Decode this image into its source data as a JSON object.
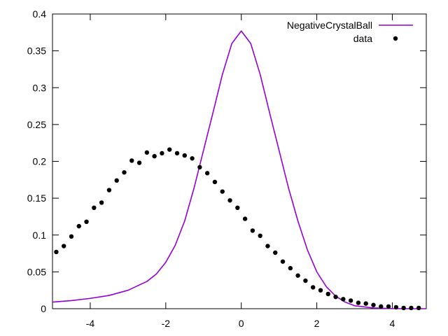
{
  "chart_data": {
    "type": "line",
    "title": "",
    "xlabel": "",
    "ylabel": "",
    "xlim": [
      -5,
      4.9
    ],
    "ylim": [
      0,
      0.4
    ],
    "xticks": [
      -4,
      -2,
      0,
      2,
      4
    ],
    "xtick_labels": [
      "-4",
      "-2",
      "0",
      "2",
      "4"
    ],
    "yticks": [
      0,
      0.05,
      0.1,
      0.15,
      0.2,
      0.25,
      0.3,
      0.35,
      0.4
    ],
    "ytick_labels": [
      "0",
      "0.05",
      "0.1",
      "0.15",
      "0.2",
      "0.25",
      "0.3",
      "0.35",
      "0.4"
    ],
    "grid": false,
    "legend_position": "top-right",
    "series": [
      {
        "name": "NegativeCrystalBall",
        "style": "line",
        "color": "#9400d3",
        "x": [
          -5.0,
          -4.5,
          -4.0,
          -3.5,
          -3.0,
          -2.5,
          -2.25,
          -2.0,
          -1.75,
          -1.5,
          -1.25,
          -1.0,
          -0.75,
          -0.5,
          -0.25,
          0.0,
          0.25,
          0.5,
          0.75,
          1.0,
          1.25,
          1.5,
          1.75,
          2.0,
          2.25,
          2.5,
          2.75,
          3.0,
          3.5,
          4.0,
          4.5,
          4.9
        ],
        "y": [
          0.009,
          0.011,
          0.014,
          0.018,
          0.025,
          0.037,
          0.047,
          0.063,
          0.086,
          0.119,
          0.164,
          0.215,
          0.266,
          0.318,
          0.36,
          0.377,
          0.36,
          0.318,
          0.266,
          0.215,
          0.164,
          0.119,
          0.08,
          0.05,
          0.03,
          0.017,
          0.009,
          0.004,
          0.001,
          0.0002,
          0.0,
          0.0
        ]
      },
      {
        "name": "data",
        "style": "points",
        "color": "#000000",
        "x": [
          -4.9,
          -4.7,
          -4.5,
          -4.3,
          -4.1,
          -3.9,
          -3.7,
          -3.5,
          -3.3,
          -3.1,
          -2.9,
          -2.7,
          -2.5,
          -2.3,
          -2.1,
          -1.9,
          -1.7,
          -1.5,
          -1.3,
          -1.1,
          -0.9,
          -0.7,
          -0.5,
          -0.3,
          -0.1,
          0.1,
          0.3,
          0.5,
          0.7,
          0.9,
          1.1,
          1.3,
          1.5,
          1.7,
          1.9,
          2.1,
          2.3,
          2.5,
          2.7,
          2.9,
          3.1,
          3.3,
          3.5,
          3.7,
          3.9,
          4.1,
          4.3,
          4.5,
          4.7
        ],
        "y": [
          0.077,
          0.085,
          0.098,
          0.112,
          0.118,
          0.137,
          0.144,
          0.161,
          0.174,
          0.185,
          0.201,
          0.198,
          0.212,
          0.207,
          0.211,
          0.216,
          0.211,
          0.208,
          0.204,
          0.192,
          0.184,
          0.172,
          0.159,
          0.147,
          0.137,
          0.122,
          0.106,
          0.099,
          0.085,
          0.076,
          0.064,
          0.055,
          0.045,
          0.038,
          0.029,
          0.025,
          0.02,
          0.016,
          0.013,
          0.011,
          0.008,
          0.007,
          0.005,
          0.003,
          0.003,
          0.002,
          0.001,
          0.001,
          0.001
        ]
      }
    ]
  }
}
